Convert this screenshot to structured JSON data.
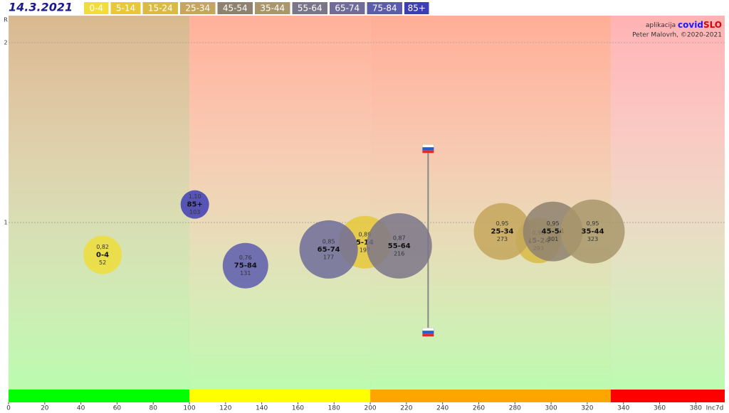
{
  "chart_data": {
    "type": "bubble",
    "date": "14.3.2021",
    "source": {
      "prefix": "aplikacija",
      "brand_a": "covid",
      "brand_b": "SLO",
      "author": "Peter Malovrh, ©2020-2021"
    },
    "x_label": "Inc7d",
    "y_label": "R",
    "xlim": [
      0,
      396
    ],
    "ylim": [
      0,
      2.15
    ],
    "xticks": [
      0,
      20,
      40,
      60,
      80,
      100,
      120,
      140,
      160,
      180,
      200,
      220,
      240,
      260,
      280,
      300,
      320,
      340,
      360,
      380
    ],
    "yticks": [
      1,
      2
    ],
    "bands": [
      {
        "from": 0,
        "to": 100,
        "color": "#00ff00",
        "tint": "#d9b98f"
      },
      {
        "from": 100,
        "to": 200,
        "color": "#ffff00",
        "tint": "#ffb199"
      },
      {
        "from": 200,
        "to": 333,
        "color": "#ffa500",
        "tint": "#ffae96"
      },
      {
        "from": 333,
        "to": 396,
        "color": "#ff0000",
        "tint": "#ffb3b3"
      }
    ],
    "marker": {
      "x": 232,
      "low": 0.39,
      "high": 1.41
    },
    "series": [
      {
        "name": "0-4",
        "color": "#eedd3a",
        "x": [
          52
        ],
        "values": [
          0.82
        ],
        "value_labels": [
          "0,82"
        ],
        "sizes": [
          27
        ]
      },
      {
        "name": "5-14",
        "color": "#e6c83a",
        "x": [
          197
        ],
        "values": [
          0.89
        ],
        "value_labels": [
          "0,89"
        ],
        "sizes": [
          37
        ]
      },
      {
        "name": "15-24",
        "color": "#d8bb45",
        "x": [
          293
        ],
        "values": [
          0.9
        ],
        "value_labels": [
          "0,90"
        ],
        "sizes": [
          32
        ]
      },
      {
        "name": "25-34",
        "color": "#c4a65c",
        "x": [
          273
        ],
        "values": [
          0.95
        ],
        "value_labels": [
          "0,95"
        ],
        "sizes": [
          40
        ]
      },
      {
        "name": "45-54",
        "color": "#8e8170",
        "x": [
          301
        ],
        "values": [
          0.95
        ],
        "value_labels": [
          "0,95"
        ],
        "sizes": [
          42
        ]
      },
      {
        "name": "35-44",
        "color": "#a9966c",
        "x": [
          323
        ],
        "values": [
          0.95
        ],
        "value_labels": [
          "0,95"
        ],
        "sizes": [
          45
        ]
      },
      {
        "name": "55-64",
        "color": "#7b7589",
        "x": [
          216
        ],
        "values": [
          0.87
        ],
        "value_labels": [
          "0,87"
        ],
        "sizes": [
          46
        ]
      },
      {
        "name": "65-74",
        "color": "#6f6c9a",
        "x": [
          177
        ],
        "values": [
          0.85
        ],
        "value_labels": [
          "0,85"
        ],
        "sizes": [
          41
        ]
      },
      {
        "name": "75-84",
        "color": "#5c5cae",
        "x": [
          131
        ],
        "values": [
          0.76
        ],
        "value_labels": [
          "0,76"
        ],
        "sizes": [
          32
        ]
      },
      {
        "name": "85+",
        "color": "#3d3db5",
        "x": [
          103
        ],
        "values": [
          1.1
        ],
        "value_labels": [
          "1,10"
        ],
        "sizes": [
          20
        ]
      }
    ]
  }
}
